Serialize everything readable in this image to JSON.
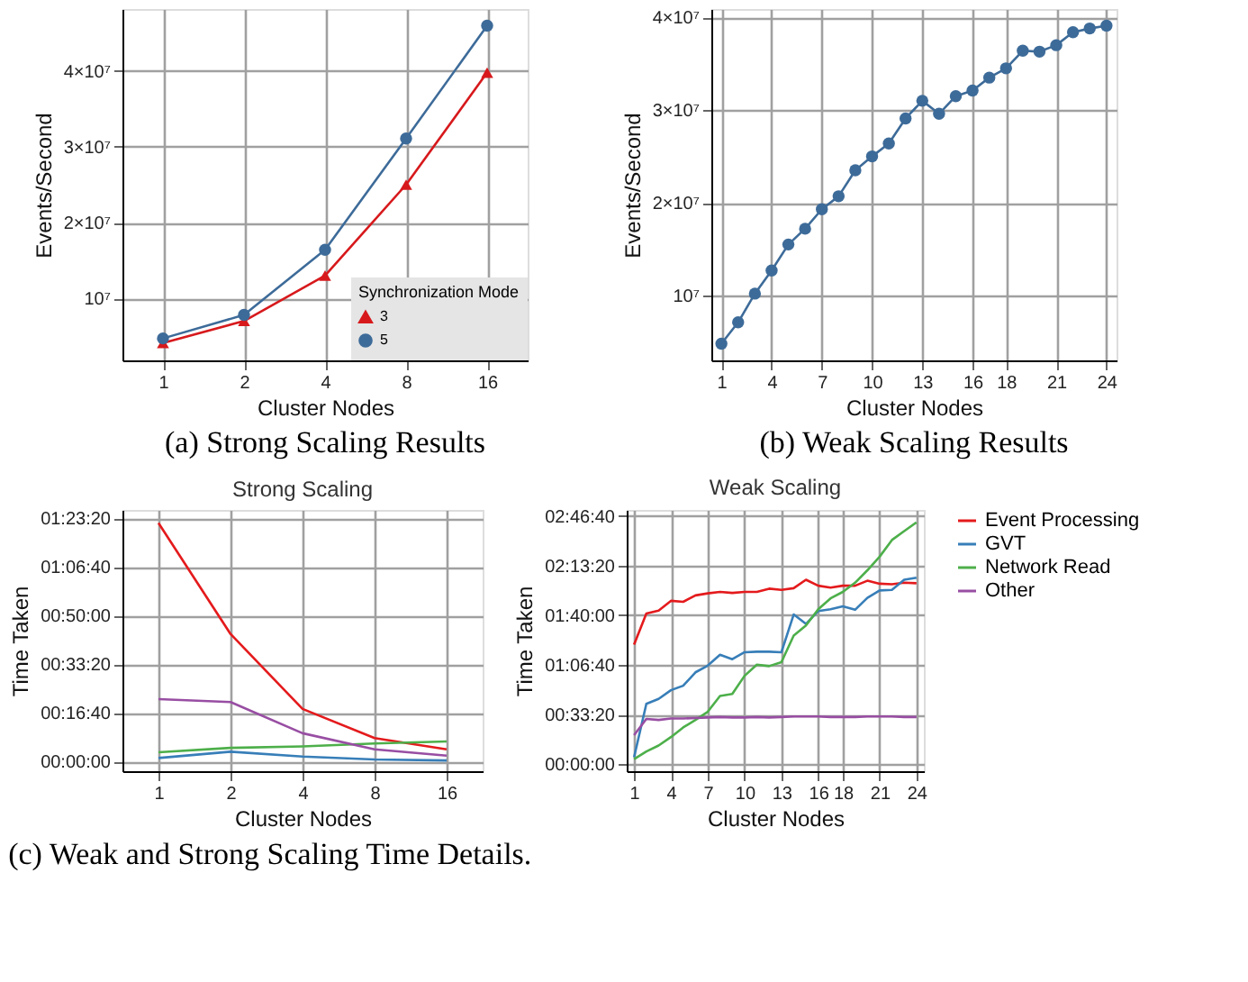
{
  "chart_data": [
    {
      "type": "line",
      "xlabel": "Cluster Nodes",
      "ylabel": "Events/Second",
      "legend_title": "Synchronization Mode",
      "legend": "bottom right",
      "grid": true,
      "categories": [
        "1",
        "2",
        "4",
        "8",
        "16"
      ],
      "ylim": [
        1800000,
        48200000
      ],
      "yticks": [
        {
          "value": 10000000,
          "label": "10⁷"
        },
        {
          "value": 20000000,
          "label": "2×10⁷"
        },
        {
          "value": 30000000,
          "label": "3×10⁷"
        },
        {
          "value": 40000000,
          "label": "4×10⁷"
        }
      ],
      "annotations": [
        "(a) Strong Scaling Results"
      ],
      "series": [
        {
          "name": "3",
          "color": "#d7191c",
          "marker": "triangle",
          "values": [
            4100000,
            7000000,
            13000000,
            25000000,
            39800000
          ]
        },
        {
          "name": "5",
          "color": "#3d6b99",
          "marker": "circle",
          "values": [
            4700000,
            7800000,
            16400000,
            31100000,
            46000000
          ]
        }
      ]
    },
    {
      "type": "line",
      "xlabel": "Cluster Nodes",
      "ylabel": "Events/Second",
      "grid": true,
      "marker": "circle",
      "xlim": [
        0.4,
        24.6
      ],
      "xticks": [
        1,
        4,
        7,
        10,
        13,
        16,
        18,
        21,
        24
      ],
      "ylim": [
        3000000,
        40900000
      ],
      "yticks": [
        {
          "value": 10000000,
          "label": "10⁷"
        },
        {
          "value": 20000000,
          "label": "2×10⁷"
        },
        {
          "value": 30000000,
          "label": "3×10⁷"
        },
        {
          "value": 40000000,
          "label": "4×10⁷"
        }
      ],
      "annotations": [
        "(b) Weak Scaling Results"
      ],
      "x": [
        1,
        2,
        3,
        4,
        5,
        6,
        7,
        8,
        9,
        10,
        11,
        12,
        13,
        14,
        15,
        16,
        17,
        18,
        19,
        20,
        21,
        22,
        23,
        24
      ],
      "series": [
        {
          "color": "#3d6b99",
          "values": [
            4800000,
            7100000,
            10200000,
            12700000,
            15500000,
            17200000,
            19300000,
            20700000,
            23500000,
            25000000,
            26400000,
            29100000,
            31000000,
            29600000,
            31500000,
            32100000,
            33500000,
            34500000,
            36400000,
            36300000,
            37000000,
            38400000,
            38800000,
            39100000
          ]
        }
      ]
    },
    {
      "type": "line",
      "title": "Strong Scaling",
      "xlabel": "Cluster Nodes",
      "ylabel": "Time Taken",
      "grid": true,
      "categories": [
        "1",
        "2",
        "4",
        "8",
        "16"
      ],
      "ylim": [
        -200,
        5170
      ],
      "yticks": [
        {
          "value": 0,
          "label": "00:00:00"
        },
        {
          "value": 1000,
          "label": "00:16:40"
        },
        {
          "value": 2000,
          "label": "00:33:20"
        },
        {
          "value": 3000,
          "label": "00:50:00"
        },
        {
          "value": 4000,
          "label": "01:06:40"
        },
        {
          "value": 5000,
          "label": "01:23:20"
        }
      ],
      "annotations": [
        "(c) Weak and Strong Scaling Time Details."
      ],
      "series": [
        {
          "color": "#e41a1c",
          "values": [
            4900,
            2620,
            1080,
            480,
            250
          ]
        },
        {
          "color": "#377eb8",
          "values": [
            70,
            200,
            100,
            40,
            20
          ]
        },
        {
          "color": "#4daf4a",
          "values": [
            190,
            280,
            310,
            370,
            410
          ]
        },
        {
          "color": "#984ea3",
          "values": [
            1280,
            1220,
            580,
            250,
            120
          ]
        }
      ]
    },
    {
      "type": "line",
      "title": "Weak Scaling",
      "xlabel": "Cluster Nodes",
      "ylabel": "Time Taken",
      "grid": true,
      "legend": "right",
      "xlim": [
        0.4,
        24.6
      ],
      "xticks": [
        1,
        4,
        7,
        10,
        13,
        16,
        18,
        21,
        24
      ],
      "ylim": [
        -283,
        10243
      ],
      "yticks": [
        {
          "value": 0,
          "label": "00:00:00"
        },
        {
          "value": 2000,
          "label": "00:33:20"
        },
        {
          "value": 4000,
          "label": "01:06:40"
        },
        {
          "value": 6000,
          "label": "01:40:00"
        },
        {
          "value": 8000,
          "label": "02:13:20"
        },
        {
          "value": 10000,
          "label": "02:46:40"
        }
      ],
      "x": [
        1,
        2,
        3,
        4,
        5,
        6,
        7,
        8,
        9,
        10,
        11,
        12,
        13,
        14,
        15,
        16,
        17,
        18,
        19,
        20,
        21,
        22,
        23,
        24
      ],
      "series": [
        {
          "name": "Event Processing",
          "color": "#e41a1c",
          "values": [
            4820,
            6070,
            6190,
            6580,
            6540,
            6800,
            6880,
            6940,
            6900,
            6940,
            6940,
            7070,
            7020,
            7090,
            7430,
            7190,
            7110,
            7190,
            7190,
            7390,
            7270,
            7250,
            7310,
            7290
          ]
        },
        {
          "name": "GVT",
          "color": "#377eb8",
          "values": [
            280,
            2430,
            2630,
            2980,
            3160,
            3700,
            3970,
            4410,
            4230,
            4510,
            4530,
            4530,
            4510,
            6030,
            5650,
            6170,
            6240,
            6360,
            6220,
            6700,
            7000,
            7020,
            7430,
            7510
          ]
        },
        {
          "name": "Network Read",
          "color": "#4daf4a",
          "values": [
            200,
            510,
            750,
            1090,
            1480,
            1780,
            2110,
            2750,
            2830,
            3560,
            4010,
            3950,
            4110,
            5180,
            5590,
            6240,
            6680,
            6940,
            7310,
            7810,
            8360,
            9030,
            9390,
            9740
          ]
        },
        {
          "name": "Other",
          "color": "#984ea3",
          "values": [
            1170,
            1820,
            1780,
            1840,
            1840,
            1860,
            1880,
            1900,
            1880,
            1880,
            1900,
            1880,
            1900,
            1920,
            1920,
            1920,
            1900,
            1900,
            1900,
            1920,
            1920,
            1920,
            1900,
            1900
          ]
        }
      ]
    }
  ]
}
